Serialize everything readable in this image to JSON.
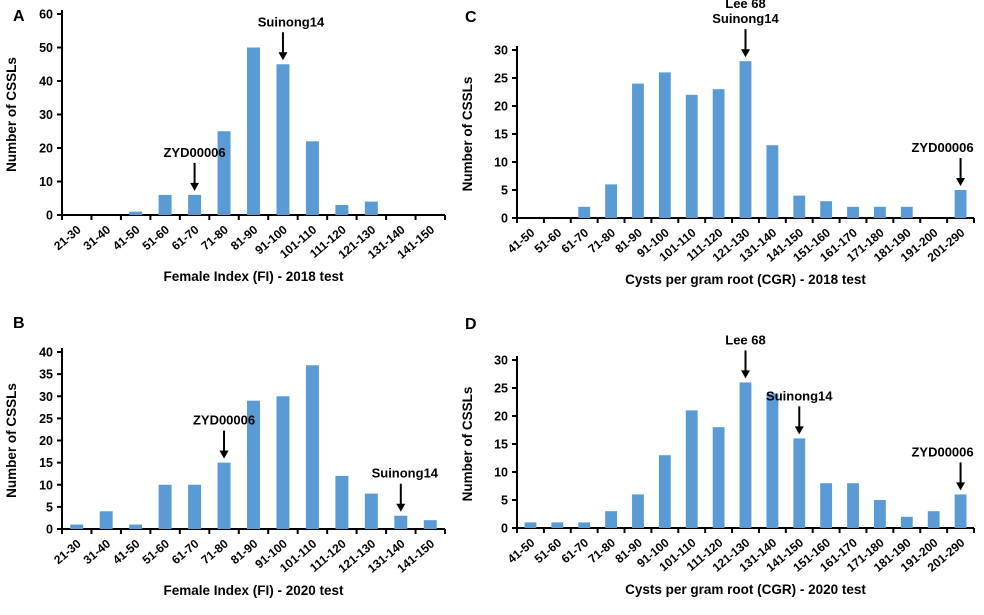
{
  "figure": {
    "bar_color": "#5b9bd5",
    "axis_color": "#000000",
    "text_color": "#000000",
    "background": "#ffffff"
  },
  "chart_data": [
    {
      "type": "bar",
      "panel": "A",
      "title": "",
      "xlabel": "Female Index (FI) - 2018 test",
      "ylabel": "Number of CSSLs",
      "ylim": [
        0,
        60
      ],
      "ytick_step": 10,
      "grid": false,
      "categories": [
        "21-30",
        "31-40",
        "41-50",
        "51-60",
        "61-70",
        "71-80",
        "81-90",
        "91-100",
        "101-110",
        "111-120",
        "121-130",
        "131-140",
        "141-150"
      ],
      "values": [
        0,
        0,
        1,
        6,
        6,
        25,
        50,
        45,
        22,
        3,
        4,
        0,
        0
      ],
      "annotations": [
        {
          "lines": [
            "ZYD00006"
          ],
          "category": "61-70",
          "dx": 0
        },
        {
          "lines": [
            "Suinong14"
          ],
          "category": "91-100",
          "dx": 8
        }
      ]
    },
    {
      "type": "bar",
      "panel": "B",
      "title": "",
      "xlabel": "Female Index (FI) - 2020 test",
      "ylabel": "Number of CSSLs",
      "ylim": [
        0,
        40
      ],
      "ytick_step": 5,
      "grid": false,
      "categories": [
        "21-30",
        "31-40",
        "41-50",
        "51-60",
        "61-70",
        "71-80",
        "81-90",
        "91-100",
        "101-110",
        "111-120",
        "121-130",
        "131-140",
        "141-150"
      ],
      "values": [
        1,
        4,
        1,
        10,
        10,
        15,
        29,
        30,
        37,
        12,
        8,
        3,
        2
      ],
      "annotations": [
        {
          "lines": [
            "ZYD00006"
          ],
          "category": "71-80",
          "dx": 0
        },
        {
          "lines": [
            "Suinong14"
          ],
          "category": "131-140",
          "dx": 4
        }
      ]
    },
    {
      "type": "bar",
      "panel": "C",
      "title": "",
      "xlabel": "Cysts  per gram root (CGR)  - 2018 test",
      "ylabel": "Number of CSSLs",
      "ylim": [
        0,
        30
      ],
      "ytick_step": 5,
      "grid": false,
      "categories": [
        "41-50",
        "51-60",
        "61-70",
        "71-80",
        "81-90",
        "91-100",
        "101-110",
        "111-120",
        "121-130",
        "131-140",
        "141-150",
        "151-160",
        "161-170",
        "171-180",
        "181-190",
        "191-200",
        "201-290"
      ],
      "values": [
        0,
        0,
        2,
        6,
        24,
        26,
        22,
        23,
        28,
        13,
        4,
        3,
        2,
        2,
        2,
        0,
        5
      ],
      "annotations": [
        {
          "lines": [
            "Lee 68",
            "Suinong14"
          ],
          "category": "121-130",
          "dx": 0
        },
        {
          "lines": [
            "ZYD00006"
          ],
          "category": "201-290",
          "dx": -18
        }
      ]
    },
    {
      "type": "bar",
      "panel": "D",
      "title": "",
      "xlabel": "Cysts  per gram root (CGR)  - 2020 test",
      "ylabel": "Number of CSSLs",
      "ylim": [
        0,
        30
      ],
      "ytick_step": 5,
      "grid": false,
      "categories": [
        "41-50",
        "51-60",
        "61-70",
        "71-80",
        "81-90",
        "91-100",
        "101-110",
        "111-120",
        "121-130",
        "131-140",
        "141-150",
        "151-160",
        "161-170",
        "171-180",
        "181-190",
        "191-200",
        "201-290"
      ],
      "values": [
        1,
        1,
        1,
        3,
        6,
        13,
        21,
        18,
        26,
        24,
        16,
        8,
        8,
        5,
        2,
        3,
        6
      ],
      "annotations": [
        {
          "lines": [
            "Lee 68"
          ],
          "category": "121-130",
          "dx": 0
        },
        {
          "lines": [
            "Suinong14"
          ],
          "category": "141-150",
          "dx": 0
        },
        {
          "lines": [
            "ZYD00006"
          ],
          "category": "201-290",
          "dx": -18
        }
      ]
    }
  ]
}
